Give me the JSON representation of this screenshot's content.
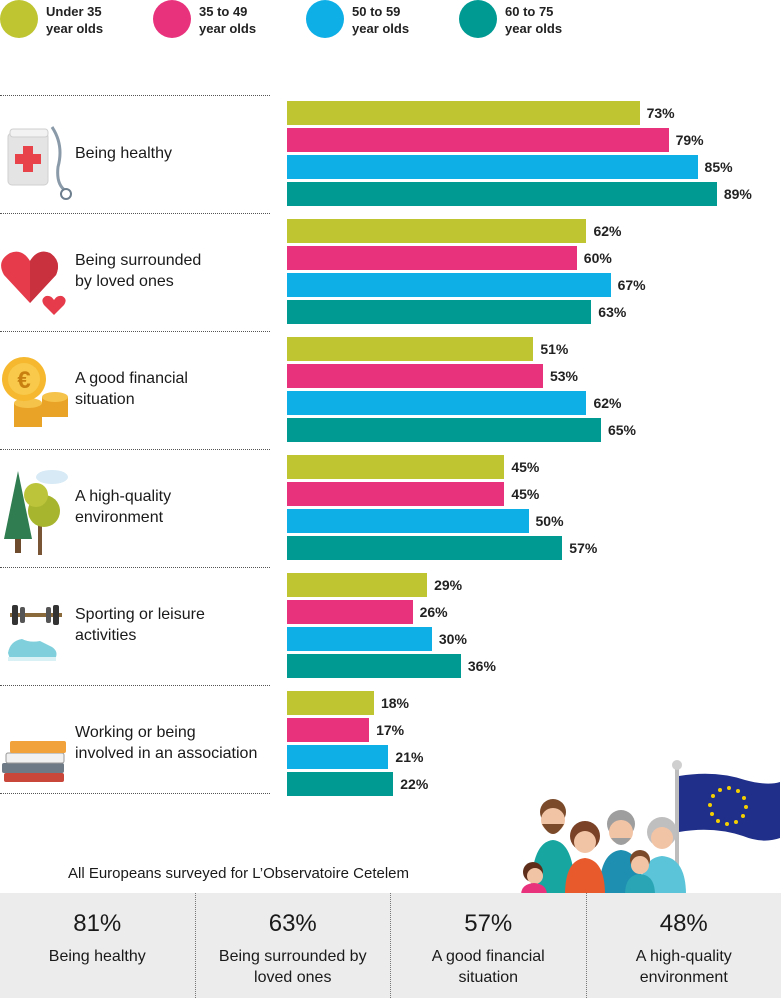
{
  "legend": [
    {
      "label_line1": "Under 35",
      "label_line2": "year olds",
      "color": "#bec531"
    },
    {
      "label_line1": "35 to 49",
      "label_line2": "year olds",
      "color": "#e8327c"
    },
    {
      "label_line1": "50 to 59",
      "label_line2": "year olds",
      "color": "#0eaee6"
    },
    {
      "label_line1": "60 to 75",
      "label_line2": "year olds",
      "color": "#009a93"
    }
  ],
  "chart_data": {
    "type": "bar",
    "orientation": "horizontal",
    "categories": [
      "Being healthy",
      "Being surrounded by loved ones",
      "A good financial situation",
      "A high-quality environment",
      "Sporting or leisure activities",
      "Working or being involved in an association"
    ],
    "category_lines": [
      [
        "Being healthy"
      ],
      [
        "Being surrounded",
        "by loved ones"
      ],
      [
        "A good financial",
        "situation"
      ],
      [
        "A high-quality",
        "environment"
      ],
      [
        "Sporting or leisure",
        "activities"
      ],
      [
        "Working or being",
        "involved in an association"
      ]
    ],
    "icons": [
      "medical-chart-icon",
      "hearts-icon",
      "euro-coins-icon",
      "trees-icon",
      "dumbbell-sneakers-icon",
      "books-icon"
    ],
    "series": [
      {
        "name": "Under 35 year olds",
        "color": "#bec531",
        "values": [
          73,
          62,
          51,
          45,
          29,
          18
        ]
      },
      {
        "name": "35 to 49 year olds",
        "color": "#e8327c",
        "values": [
          79,
          60,
          53,
          45,
          26,
          17
        ]
      },
      {
        "name": "50 to 59 year olds",
        "color": "#0eaee6",
        "values": [
          85,
          67,
          62,
          50,
          30,
          21
        ]
      },
      {
        "name": "60 to 75 year olds",
        "color": "#009a93",
        "values": [
          89,
          63,
          65,
          57,
          36,
          22
        ]
      }
    ],
    "value_suffix": "%",
    "xlim": [
      0,
      100
    ],
    "legend_position": "top"
  },
  "summary": {
    "title": "All Europeans surveyed for L’Observatoire Cetelem",
    "items": [
      {
        "value": "81%",
        "label": "Being healthy"
      },
      {
        "value": "63%",
        "label": "Being surrounded by loved ones"
      },
      {
        "value": "57%",
        "label": "A good financial situation"
      },
      {
        "value": "48%",
        "label": "A high-quality environment"
      }
    ]
  },
  "illustration": {
    "icon": "family-with-eu-flag-icon"
  }
}
